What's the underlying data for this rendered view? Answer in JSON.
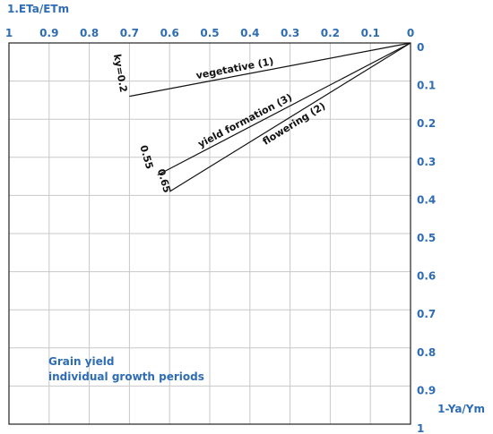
{
  "chart_data": {
    "type": "line",
    "xlabel": "1.ETa/ETm",
    "ylabel": "1-Ya/Ym",
    "xlim": [
      1,
      0
    ],
    "ylim": [
      0,
      1
    ],
    "x_ticks": [
      "1",
      "0.9",
      "0.8",
      "0.7",
      "0.6",
      "0.5",
      "0.4",
      "0.3",
      "0.2",
      "0.1",
      "0"
    ],
    "y_ticks": [
      "0",
      "0.1",
      "0.2",
      "0.3",
      "0.4",
      "0.5",
      "0.6",
      "0.7",
      "0.8",
      "0.9",
      "1"
    ],
    "grid": true,
    "series": [
      {
        "name": "vegetative (1)",
        "ky_label": "ky=0.2",
        "x": [
          0,
          0.7
        ],
        "y": [
          0,
          0.14
        ]
      },
      {
        "name": "yield formation (3)",
        "ky_label": "0.55",
        "x": [
          0,
          0.63
        ],
        "y": [
          0,
          0.3465
        ]
      },
      {
        "name": "flowering (2)",
        "ky_label": "0.65",
        "x": [
          0,
          0.6
        ],
        "y": [
          0,
          0.39
        ]
      }
    ],
    "annotation": [
      "Grain yield",
      "individual growth periods"
    ]
  }
}
